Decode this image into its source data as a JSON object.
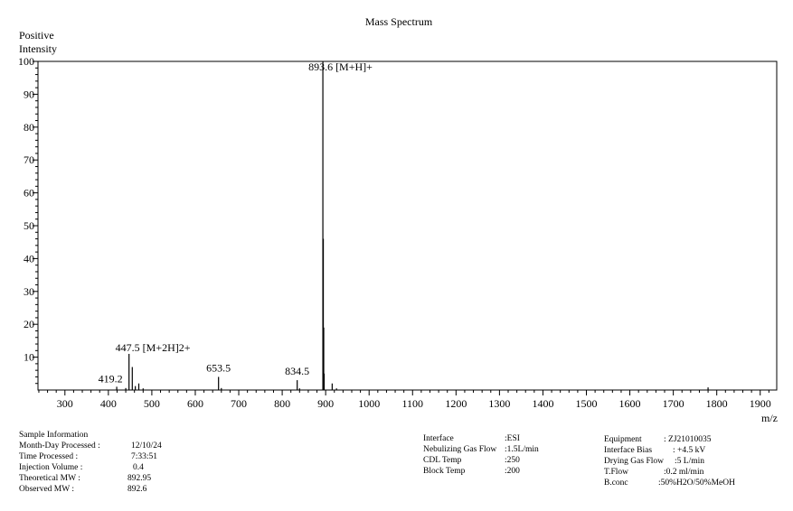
{
  "chart_data": {
    "type": "bar",
    "title": "Mass Spectrum",
    "ylabel": "Positive Intensity",
    "ylabel_lines": [
      "Positive",
      "Intensity"
    ],
    "xlabel": "m/z",
    "xlim": [
      238,
      1938
    ],
    "ylim": [
      0,
      100
    ],
    "x_ticks": [
      300,
      400,
      500,
      600,
      700,
      800,
      900,
      1000,
      1100,
      1200,
      1300,
      1400,
      1500,
      1600,
      1700,
      1800,
      1900
    ],
    "y_ticks": [
      10,
      20,
      30,
      40,
      50,
      60,
      70,
      80,
      90,
      100
    ],
    "peaks": [
      {
        "mz": 419.2,
        "intensity": 1.0
      },
      {
        "mz": 440.0,
        "intensity": 0.6
      },
      {
        "mz": 447.5,
        "intensity": 11.0
      },
      {
        "mz": 455.0,
        "intensity": 7.0
      },
      {
        "mz": 462.0,
        "intensity": 1.2
      },
      {
        "mz": 470.0,
        "intensity": 2.0
      },
      {
        "mz": 480.0,
        "intensity": 0.5
      },
      {
        "mz": 653.5,
        "intensity": 4.0
      },
      {
        "mz": 660.0,
        "intensity": 0.6
      },
      {
        "mz": 834.5,
        "intensity": 3.0
      },
      {
        "mz": 840.0,
        "intensity": 0.5
      },
      {
        "mz": 893.6,
        "intensity": 100.0
      },
      {
        "mz": 894.6,
        "intensity": 46.0
      },
      {
        "mz": 895.6,
        "intensity": 19.0
      },
      {
        "mz": 896.6,
        "intensity": 5.0
      },
      {
        "mz": 915.0,
        "intensity": 2.0
      },
      {
        "mz": 925.0,
        "intensity": 0.5
      },
      {
        "mz": 1780.0,
        "intensity": 0.8
      }
    ],
    "annotations": [
      {
        "mz": 419.2,
        "intensity": 1.0,
        "text": "419.2"
      },
      {
        "mz": 447.5,
        "intensity": 11.0,
        "text": "447.5 [M+2H]2+"
      },
      {
        "mz": 653.5,
        "intensity": 4.0,
        "text": "653.5"
      },
      {
        "mz": 834.5,
        "intensity": 3.0,
        "text": "834.5"
      },
      {
        "mz": 893.6,
        "intensity": 100.0,
        "text": "893.6 [M+H]+"
      }
    ]
  },
  "sample_info": {
    "heading": "Sample Information",
    "rows": [
      {
        "key": "Month-Day Processed :",
        "value": "12/10/24"
      },
      {
        "key": "Time Processed :",
        "value": "7:33:51"
      },
      {
        "key": "Injection Volume :",
        "value": "0.4"
      },
      {
        "key": "Theoretical MW :",
        "value": "892.95"
      },
      {
        "key": "Observed MW :",
        "value": "892.6"
      }
    ]
  },
  "interface_info": {
    "rows": [
      {
        "key": "Interface",
        "value": ":ESI"
      },
      {
        "key": "Nebulizing Gas Flow",
        "value": ":1.5L/min"
      },
      {
        "key": "CDL Temp",
        "value": ":250"
      },
      {
        "key": "Block Temp",
        "value": ":200"
      }
    ]
  },
  "equipment_info": {
    "rows": [
      {
        "key": "Equipment",
        "value": ": ZJ21010035"
      },
      {
        "key": "Interface Bias",
        "value": ": +4.5 kV"
      },
      {
        "key": "Drying Gas Flow",
        "value": ":5 L/min"
      },
      {
        "key": "T.Flow",
        "value": ":0.2 ml/min"
      },
      {
        "key": "B.conc",
        "value": ":50%H2O/50%MeOH"
      }
    ]
  }
}
